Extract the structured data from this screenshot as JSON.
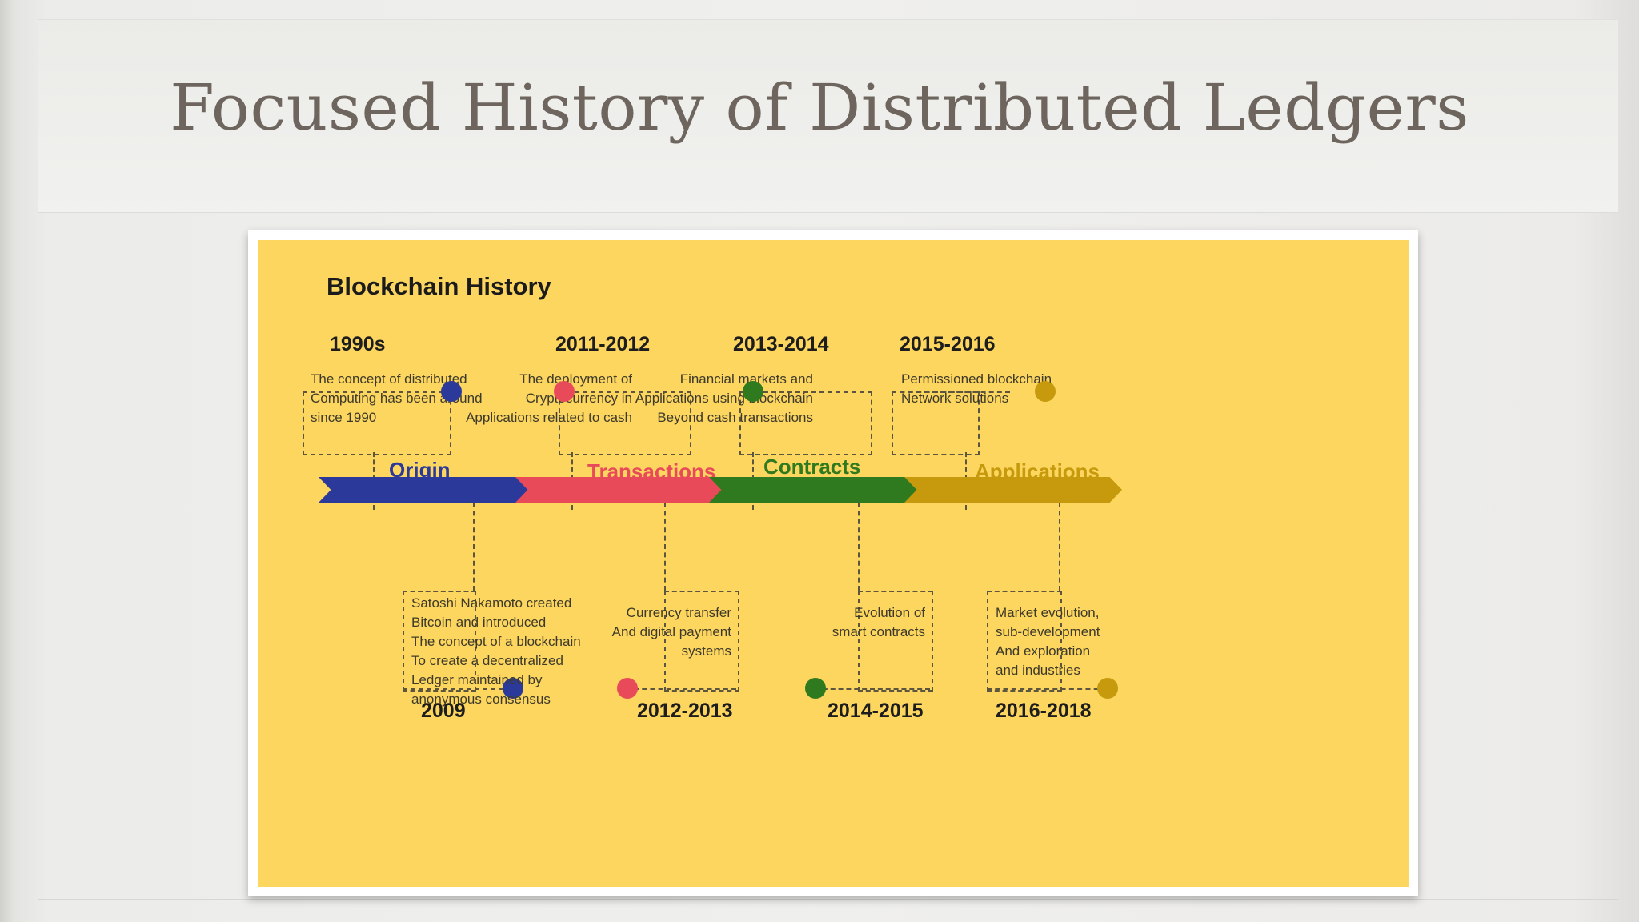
{
  "slide": {
    "title": "Focused History of Distributed Ledgers"
  },
  "colors": {
    "origin": "#2b3a9a",
    "transactions": "#e84a5a",
    "contracts": "#2f7a1f",
    "applications": "#c69a0c",
    "background": "#fdd660"
  },
  "infographic": {
    "heading": "Blockchain History",
    "phases": [
      {
        "label": "Origin",
        "color": "#2b3a9a"
      },
      {
        "label": "Transactions",
        "color": "#e84a5a"
      },
      {
        "label": "Contracts",
        "color": "#2f7a1f"
      },
      {
        "label": "Applications",
        "color": "#c69a0c"
      }
    ],
    "top_events": [
      {
        "year": "1990s",
        "text": [
          "The concept of distributed",
          "Computing has been around",
          "since 1990"
        ]
      },
      {
        "year": "2011-2012",
        "text": [
          "The deployment of",
          "Cryptocurrency in",
          "Applications related to cash"
        ]
      },
      {
        "year": "2013-2014",
        "text": [
          "Financial markets and",
          "Applications using blockchain",
          "Beyond cash transactions"
        ]
      },
      {
        "year": "2015-2016",
        "text": [
          "Permissioned blockchain",
          "Network solutions"
        ]
      }
    ],
    "bottom_events": [
      {
        "year": "2009",
        "text": [
          "Satoshi Nakamoto created",
          "Bitcoin and introduced",
          "The concept of a blockchain",
          "To create a decentralized",
          "Ledger maintained by",
          "anonymous consensus"
        ]
      },
      {
        "year": "2012-2013",
        "text": [
          "Currency transfer",
          "And digital payment",
          "systems"
        ]
      },
      {
        "year": "2014-2015",
        "text": [
          "Evolution of",
          "smart contracts"
        ]
      },
      {
        "year": "2016-2018",
        "text": [
          "Market evolution,",
          "sub-development",
          "And exploration",
          "and industries"
        ]
      }
    ]
  }
}
